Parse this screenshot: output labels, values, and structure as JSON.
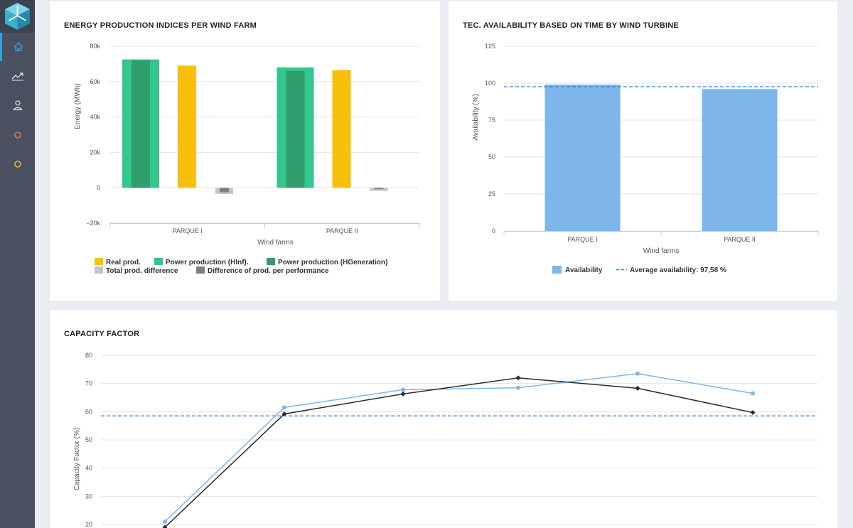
{
  "sidebar": {
    "items": [
      {
        "icon": "home-icon",
        "active": true
      },
      {
        "icon": "chart-trend-icon",
        "active": false
      },
      {
        "icon": "user-icon",
        "active": false
      },
      {
        "icon": "circle-icon",
        "color": "#e0706a",
        "active": false
      },
      {
        "icon": "circle-icon",
        "color": "#e8b932",
        "active": false
      }
    ],
    "accent": "#3aa0d8"
  },
  "energy_card": {
    "title": "ENERGY PRODUCTION INDICES PER WIND FARM",
    "chart_data": {
      "type": "bar",
      "xlabel": "Wind farms",
      "ylabel": "Energy (MWh)",
      "ylim": [
        -20000,
        80000
      ],
      "yticks": [
        "80k",
        "60k",
        "40k",
        "20k",
        "0",
        "−20k"
      ],
      "categories": [
        "PARQUE I",
        "PARQUE II"
      ],
      "series": [
        {
          "name": "Real prod.",
          "color": "#f8c00a",
          "values": [
            69000,
            66500
          ]
        },
        {
          "name": "Power production (HInf).",
          "color": "#33c68e",
          "values": [
            72500,
            68000
          ]
        },
        {
          "name": "Power production (HGeneration)",
          "color": "#2f9e6c",
          "values": [
            72000,
            66000
          ]
        },
        {
          "name": "Total prod. difference",
          "color": "#c3c6c8",
          "values": [
            -3500,
            -1800
          ]
        },
        {
          "name": "Difference of prod. per performance",
          "color": "#7a8088",
          "values": [
            -2500,
            -800
          ]
        }
      ],
      "legend": "bottom"
    }
  },
  "availability_card": {
    "title": "TEC. AVAILABILITY BASED ON TIME BY WIND TURBINE",
    "chart_data": {
      "type": "bar",
      "xlabel": "Wind farms",
      "ylabel": "Availability (%)",
      "ylim": [
        0,
        125
      ],
      "yticks": [
        "125",
        "100",
        "75",
        "50",
        "25",
        "0"
      ],
      "categories": [
        "PARQUE I",
        "PARQUE II"
      ],
      "series": [
        {
          "name": "Availability",
          "color": "#7db6ea",
          "values": [
            99,
            96
          ]
        }
      ],
      "average": {
        "name": "Average availability: 97,58 %",
        "value": 97.58,
        "color": "#2a7fd4"
      },
      "legend": "bottom"
    }
  },
  "capacity_card": {
    "title": "CAPACITY FACTOR",
    "chart_data": {
      "type": "line",
      "ylabel": "Capacity Factor (%)",
      "ylim": [
        20,
        80
      ],
      "yticks": [
        "80",
        "70",
        "60",
        "50",
        "40",
        "30",
        "20"
      ],
      "series": [
        {
          "color": "#7db6ea",
          "values": [
            21,
            61.5,
            67.8,
            68.5,
            73.5,
            66.5
          ]
        },
        {
          "color": "#2b2b2b",
          "values": [
            19,
            59.2,
            66.3,
            72,
            68.3,
            59.7
          ]
        }
      ],
      "average": {
        "value": 58.5,
        "color": "#2a7fd4"
      }
    }
  }
}
